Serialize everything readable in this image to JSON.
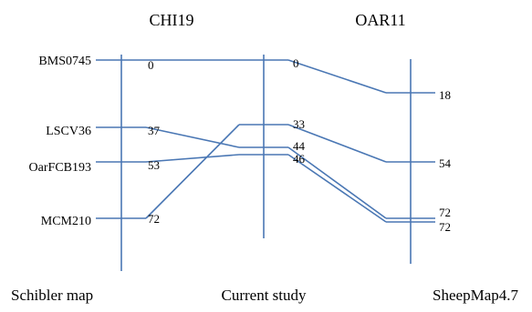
{
  "titles": {
    "left": "CHI19",
    "right": "OAR11"
  },
  "footers": {
    "left": "Schibler map",
    "middle": "Current study",
    "right": "SheepMap4.7"
  },
  "colors": {
    "line": "#4a77b4",
    "text": "#000000"
  },
  "maps": {
    "schibler": {
      "markers": [
        {
          "name": "BMS0745",
          "pos": "0"
        },
        {
          "name": "LSCV36",
          "pos": "37"
        },
        {
          "name": "OarFCB193",
          "pos": "53"
        },
        {
          "name": "MCM210",
          "pos": "72"
        }
      ]
    },
    "current": {
      "positions": [
        "0",
        "33",
        "44",
        "46"
      ]
    },
    "sheep": {
      "positions": [
        "18",
        "54",
        "72",
        "72"
      ]
    }
  }
}
